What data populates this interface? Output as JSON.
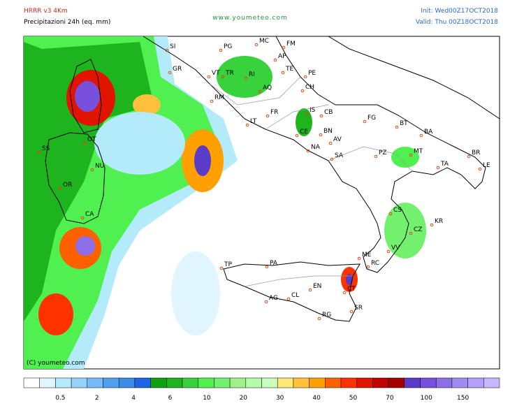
{
  "header": {
    "model": "HRRR v3 4Km",
    "product": "Precipitazioni 24h (eq. mm)",
    "site": "www.youmeteo.com",
    "init": "Init: Wed00Z17OCT2018",
    "valid": "Valid: Thu 00Z18OCT2018"
  },
  "cities": [
    "SI",
    "PG",
    "MC",
    "FM",
    "AP",
    "GR",
    "VT",
    "TR",
    "RI",
    "TE",
    "PE",
    "AQ",
    "CH",
    "RM",
    "IS",
    "CB",
    "FG",
    "FR",
    "LT",
    "CE",
    "BN",
    "AV",
    "BT",
    "BA",
    "NA",
    "SA",
    "PZ",
    "MT",
    "BR",
    "TA",
    "LE",
    "OT",
    "SS",
    "NU",
    "OR",
    "CA",
    "CS",
    "KR",
    "CZ",
    "VV",
    "ME",
    "RC",
    "TP",
    "PA",
    "EN",
    "CT",
    "CL",
    "AG",
    "SR",
    "RG"
  ],
  "copyright": "(C) youmeteo.com",
  "colorbar": {
    "colors": [
      "#ffffff",
      "#e1f5fe",
      "#b4ebfa",
      "#96d2fa",
      "#78b9fa",
      "#50a0f0",
      "#3c8ce6",
      "#1e64e6",
      "#0fa00f",
      "#1eb41e",
      "#37d23c",
      "#50f050",
      "#73f06e",
      "#a0f08c",
      "#b4faaa",
      "#c8ffbe",
      "#ffe878",
      "#ffc03c",
      "#ffa000",
      "#ff6000",
      "#ff3200",
      "#e11400",
      "#c00000",
      "#a50000",
      "#5a3cc8",
      "#7850dc",
      "#8c6ee6",
      "#a08cf0",
      "#b4a0fa",
      "#c8b4ff"
    ],
    "labels": [
      0.5,
      2,
      4,
      6,
      10,
      20,
      30,
      40,
      50,
      70,
      100,
      150
    ]
  }
}
